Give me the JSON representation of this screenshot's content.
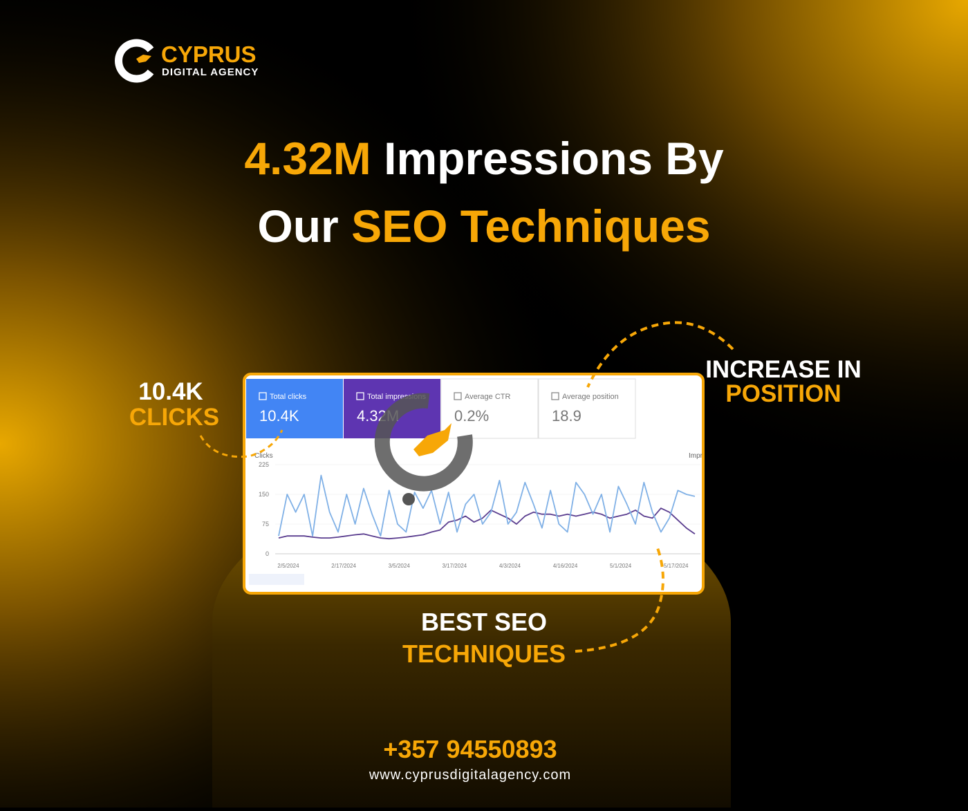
{
  "logo": {
    "name": "CYPRUS",
    "tagline": "DIGITAL AGENCY"
  },
  "headline": {
    "highlight_1": "4.32M",
    "text_1": "Impressions By",
    "text_2": "Our",
    "highlight_2": "SEO Techniques"
  },
  "callouts": {
    "clicks": {
      "value": "10.4K",
      "label": "CLICKS"
    },
    "position": {
      "line1": "INCREASE IN",
      "line2": "POSITION"
    },
    "techniques": {
      "line1": "BEST SEO",
      "line2": "TECHNIQUES"
    }
  },
  "metrics": [
    {
      "label": "Total clicks",
      "value": "10.4K",
      "color": "#4285f4"
    },
    {
      "label": "Total impressions",
      "value": "4.32M",
      "color": "#5e35b1"
    },
    {
      "label": "Average CTR",
      "value": "0.2%"
    },
    {
      "label": "Average position",
      "value": "18.9"
    }
  ],
  "chart_data": {
    "type": "line",
    "y_label": "Clicks",
    "y2_label": "Impr",
    "ylim": [
      0,
      225
    ],
    "yticks": [
      0,
      75,
      150,
      225
    ],
    "grid": true,
    "xticks": [
      "2/5/2024",
      "2/17/2024",
      "3/5/2024",
      "3/17/2024",
      "4/3/2024",
      "4/16/2024",
      "5/1/2024",
      "5/17/2024"
    ],
    "series": [
      {
        "color": "#7fb0e6",
        "values": [
          45,
          150,
          105,
          150,
          45,
          198,
          105,
          55,
          150,
          75,
          165,
          100,
          45,
          160,
          75,
          55,
          155,
          115,
          160,
          75,
          155,
          55,
          125,
          150,
          75,
          105,
          185,
          75,
          105,
          180,
          125,
          65,
          160,
          75,
          55,
          180,
          150,
          100,
          150,
          55,
          170,
          125,
          75,
          180,
          105,
          55,
          90,
          160,
          150,
          145
        ]
      },
      {
        "color": "#5a3d8f",
        "values": [
          40,
          45,
          45,
          45,
          42,
          40,
          40,
          42,
          45,
          48,
          50,
          45,
          40,
          38,
          40,
          42,
          45,
          48,
          55,
          60,
          80,
          85,
          95,
          80,
          90,
          110,
          100,
          90,
          75,
          95,
          105,
          100,
          100,
          95,
          100,
          95,
          100,
          105,
          100,
          90,
          95,
          100,
          110,
          95,
          90,
          115,
          105,
          85,
          65,
          50
        ]
      }
    ]
  },
  "footer": {
    "phone": "+357 94550893",
    "website": "www.cyprusdigitalagency.com"
  }
}
